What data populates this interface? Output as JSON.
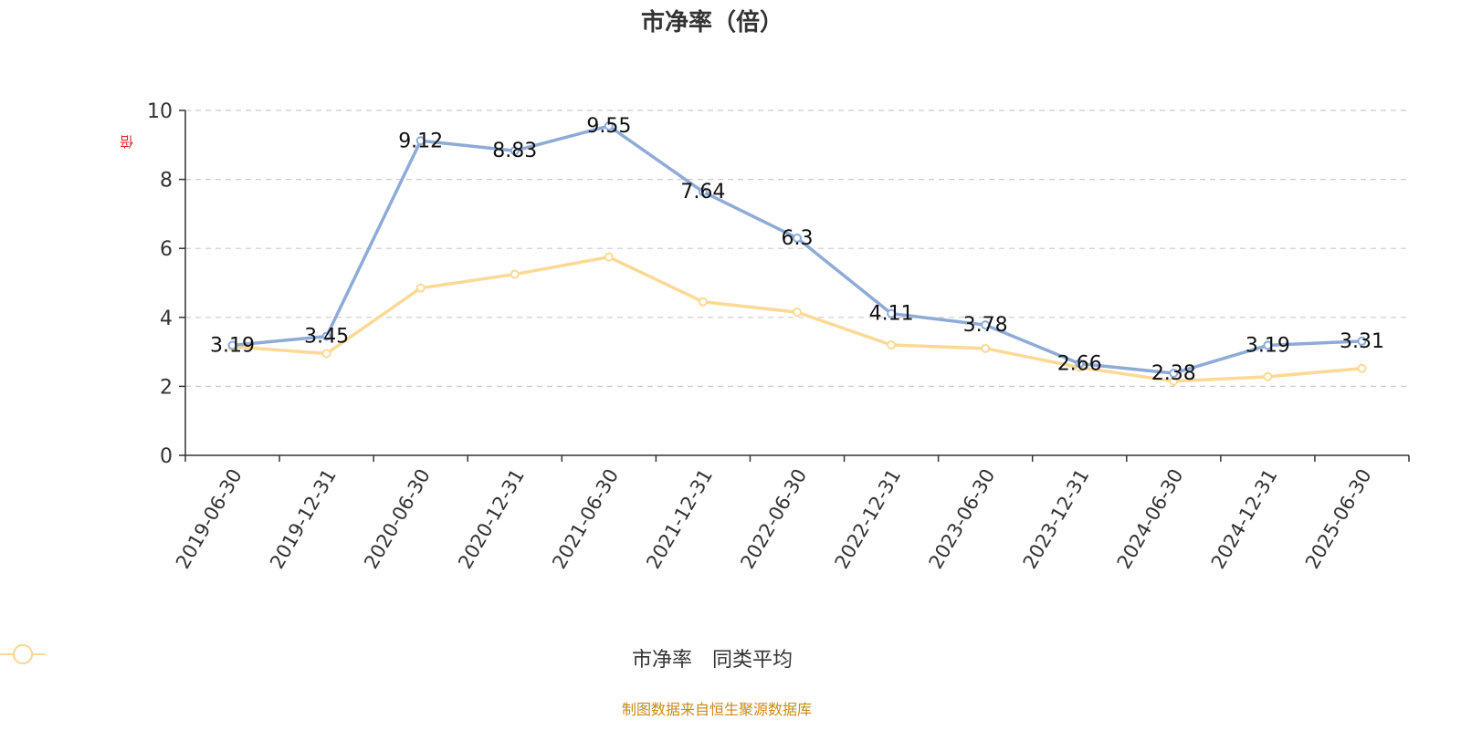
{
  "title": "市净率（倍）",
  "yunit": "倍",
  "source": "制图数据来自恒生聚源数据库",
  "colors": {
    "series1": "#8eabd8",
    "series2": "#fcd994",
    "source_text": "#c98a1a"
  },
  "chart_data": {
    "type": "line",
    "title": "市净率（倍）",
    "ylabel": "倍",
    "ylim": [
      0,
      10
    ],
    "yticks": [
      0,
      2,
      4,
      6,
      8,
      10
    ],
    "grid": true,
    "legend_position": "bottom-center",
    "categories": [
      "2019-06-30",
      "2019-12-31",
      "2020-06-30",
      "2020-12-31",
      "2021-06-30",
      "2021-12-31",
      "2022-06-30",
      "2022-12-31",
      "2023-06-30",
      "2023-12-31",
      "2024-06-30",
      "2024-12-31",
      "2025-06-30"
    ],
    "series": [
      {
        "name": "市净率",
        "values": [
          3.19,
          3.45,
          9.12,
          8.83,
          9.55,
          7.64,
          6.3,
          4.11,
          3.78,
          2.66,
          2.38,
          3.19,
          3.31
        ],
        "labeled": true
      },
      {
        "name": "同类平均",
        "values": [
          3.15,
          2.95,
          4.85,
          5.25,
          5.75,
          4.45,
          4.15,
          3.2,
          3.1,
          2.55,
          2.15,
          2.28,
          2.52
        ],
        "labeled": false
      }
    ]
  }
}
